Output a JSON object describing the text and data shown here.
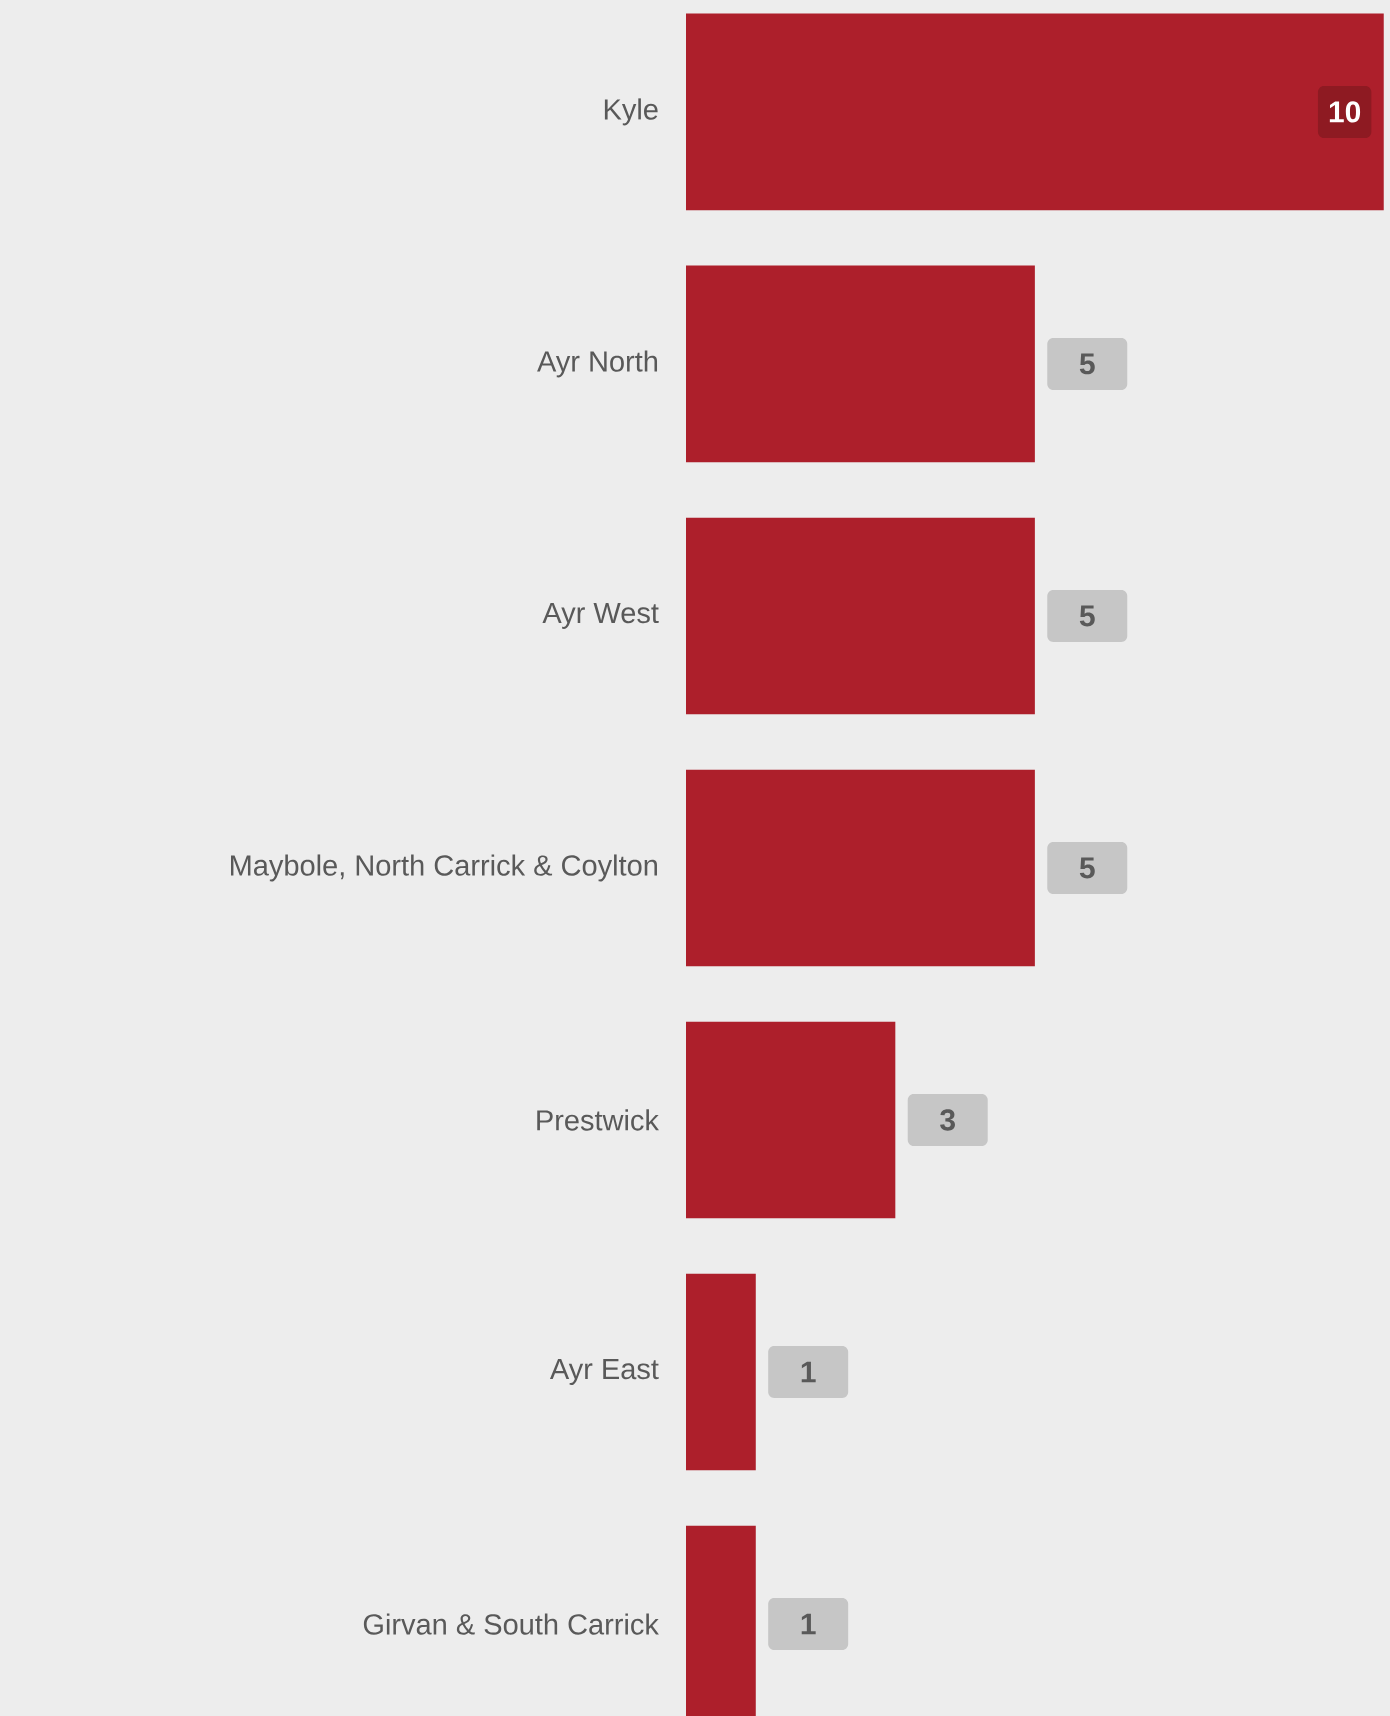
{
  "chart_data": {
    "type": "bar",
    "orientation": "horizontal",
    "categories": [
      "Kyle",
      "Ayr North",
      "Ayr West",
      "Maybole, North Carrick & Coylton",
      "Prestwick",
      "Ayr East",
      "Girvan & South Carrick"
    ],
    "values": [
      10,
      5,
      5,
      5,
      3,
      1,
      1
    ],
    "color": "#ad1f2b",
    "data_labels": true
  }
}
